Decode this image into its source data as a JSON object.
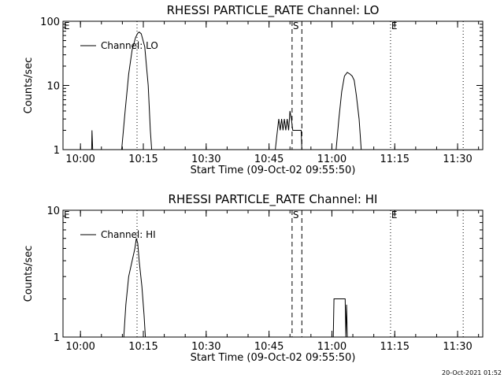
{
  "chart_data": [
    {
      "type": "line",
      "title": "RHESSI PARTICLE_RATE Channel: LO",
      "xlabel": "Start Time (09-Oct-02 09:55:50)",
      "ylabel": "Counts/sec",
      "yscale": "log",
      "ylim": [
        1,
        100
      ],
      "xlim": [
        "09:55:50",
        "11:36:00"
      ],
      "ytick_labels": [
        "1",
        "10",
        "100"
      ],
      "xtick_labels": [
        "10:00",
        "10:15",
        "10:30",
        "10:45",
        "11:00",
        "11:15",
        "11:30"
      ],
      "xticks": [
        "10:00",
        "10:15",
        "10:30",
        "10:45",
        "11:00",
        "11:15",
        "11:30"
      ],
      "legend": {
        "position": "top-left",
        "entries": [
          "Channel: LO"
        ]
      },
      "markers": [
        {
          "label": "E",
          "time": "09:55:50",
          "style": "dotted"
        },
        {
          "label": "",
          "time": "10:13:30",
          "style": "dotted"
        },
        {
          "label": "S",
          "time": "10:50:30",
          "style": "dashed"
        },
        {
          "label": "",
          "time": "10:52:50",
          "style": "dashed"
        },
        {
          "label": "E",
          "time": "11:14:00",
          "style": "dotted"
        },
        {
          "label": "",
          "time": "11:31:20",
          "style": "dotted"
        }
      ],
      "series": [
        {
          "name": "Channel: LO",
          "points": [
            [
              "10:02:40",
              1
            ],
            [
              "10:02:45",
              2
            ],
            [
              "10:02:55",
              1
            ],
            [
              "10:09:50",
              1
            ],
            [
              "10:10:40",
              4
            ],
            [
              "10:11:30",
              15
            ],
            [
              "10:12:20",
              36
            ],
            [
              "10:13:10",
              56
            ],
            [
              "10:13:40",
              65
            ],
            [
              "10:14:00",
              68
            ],
            [
              "10:14:30",
              64
            ],
            [
              "10:15:20",
              40
            ],
            [
              "10:16:10",
              10
            ],
            [
              "10:16:40",
              2
            ],
            [
              "10:17:00",
              1
            ],
            [
              "10:46:30",
              1
            ],
            [
              "10:47:00",
              2
            ],
            [
              "10:47:20",
              3
            ],
            [
              "10:47:40",
              2
            ],
            [
              "10:48:00",
              3
            ],
            [
              "10:48:20",
              2
            ],
            [
              "10:48:40",
              3
            ],
            [
              "10:49:00",
              2
            ],
            [
              "10:49:20",
              3
            ],
            [
              "10:49:40",
              2
            ],
            [
              "10:50:00",
              4
            ],
            [
              "10:50:20",
              3
            ],
            [
              "10:50:40",
              2
            ],
            [
              "10:52:40",
              2
            ],
            [
              "10:52:50",
              1
            ],
            [
              "11:01:00",
              1
            ],
            [
              "11:01:40",
              3
            ],
            [
              "11:02:20",
              8
            ],
            [
              "11:03:00",
              14
            ],
            [
              "11:03:40",
              16
            ],
            [
              "11:04:20",
              15
            ],
            [
              "11:04:50",
              14
            ],
            [
              "11:05:20",
              12
            ],
            [
              "11:05:50",
              7
            ],
            [
              "11:06:30",
              3
            ],
            [
              "11:07:00",
              1
            ]
          ]
        }
      ]
    },
    {
      "type": "line",
      "title": "RHESSI PARTICLE_RATE Channel: HI",
      "xlabel": "Start Time (09-Oct-02 09:55:50)",
      "ylabel": "Counts/sec",
      "yscale": "log",
      "ylim": [
        1,
        10
      ],
      "xlim": [
        "09:55:50",
        "11:36:00"
      ],
      "ytick_labels": [
        "1",
        "10"
      ],
      "xtick_labels": [
        "10:00",
        "10:15",
        "10:30",
        "10:45",
        "11:00",
        "11:15",
        "11:30"
      ],
      "xticks": [
        "10:00",
        "10:15",
        "10:30",
        "10:45",
        "11:00",
        "11:15",
        "11:30"
      ],
      "legend": {
        "position": "top-left",
        "entries": [
          "Channel: HI"
        ]
      },
      "markers": [
        {
          "label": "E",
          "time": "09:55:50",
          "style": "dotted"
        },
        {
          "label": "",
          "time": "10:13:30",
          "style": "dotted"
        },
        {
          "label": "S",
          "time": "10:50:30",
          "style": "dashed"
        },
        {
          "label": "",
          "time": "10:52:50",
          "style": "dashed"
        },
        {
          "label": "E",
          "time": "11:14:00",
          "style": "dotted"
        },
        {
          "label": "",
          "time": "11:31:20",
          "style": "dotted"
        }
      ],
      "series": [
        {
          "name": "Channel: HI",
          "points": [
            [
              "10:10:20",
              1
            ],
            [
              "10:10:50",
              1.8
            ],
            [
              "10:11:30",
              3
            ],
            [
              "10:12:20",
              4
            ],
            [
              "10:13:00",
              5
            ],
            [
              "10:13:20",
              6
            ],
            [
              "10:13:40",
              5.5
            ],
            [
              "10:14:00",
              4
            ],
            [
              "10:14:40",
              2.5
            ],
            [
              "10:15:10",
              1.5
            ],
            [
              "10:15:30",
              1
            ],
            [
              "11:00:20",
              1
            ],
            [
              "11:00:30",
              2
            ],
            [
              "11:03:10",
              2
            ],
            [
              "11:03:20",
              1
            ],
            [
              "11:03:30",
              1.8
            ],
            [
              "11:03:40",
              1
            ]
          ]
        }
      ]
    }
  ],
  "footer": {
    "timestamp": "20-Oct-2021 01:52"
  }
}
